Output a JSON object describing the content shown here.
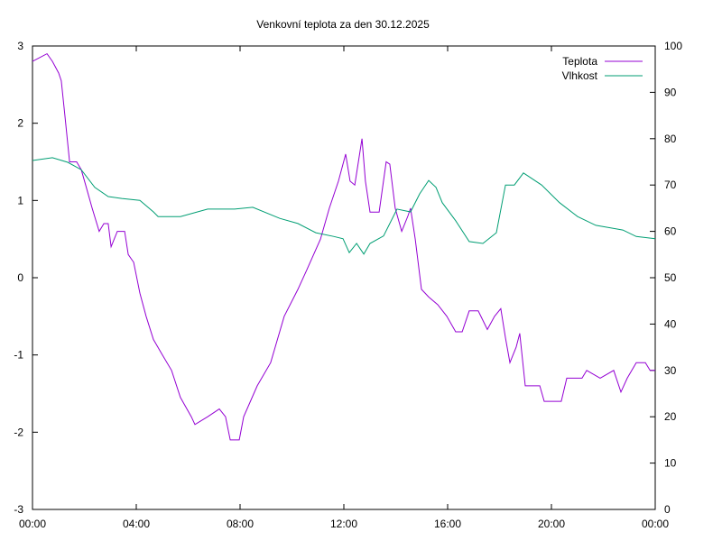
{
  "chart_data": {
    "type": "line",
    "title": "Venkovní teplota za den 30.12.2025",
    "xlabel": "",
    "ylabel": "",
    "y2label": "",
    "xlim": [
      0,
      24
    ],
    "ylim": [
      -3,
      3
    ],
    "y2lim": [
      0,
      100
    ],
    "x_ticks": [
      "00:00",
      "04:00",
      "08:00",
      "12:00",
      "16:00",
      "20:00",
      "00:00"
    ],
    "y_ticks": [
      "-3",
      "-2",
      "-1",
      "0",
      "1",
      "2",
      "3"
    ],
    "y2_ticks": [
      "0",
      "10",
      "20",
      "30",
      "40",
      "50",
      "60",
      "70",
      "80",
      "90",
      "100"
    ],
    "grid": false,
    "legend_position": "top-right",
    "series": [
      {
        "name": "Teplota",
        "axis": "y1",
        "color": "#9400d3",
        "x": [
          0,
          0.56,
          0.77,
          1.01,
          1.11,
          1.25,
          1.43,
          1.7,
          1.88,
          2.05,
          2.3,
          2.57,
          2.75,
          2.92,
          3.03,
          3.27,
          3.55,
          3.69,
          3.9,
          4.14,
          4.38,
          4.66,
          5.01,
          5.36,
          5.7,
          6.12,
          6.26,
          6.75,
          7.2,
          7.44,
          7.62,
          7.97,
          8.14,
          8.66,
          9.18,
          9.7,
          10.23,
          10.57,
          11.1,
          11.44,
          11.79,
          12.07,
          12.24,
          12.42,
          12.56,
          12.7,
          12.83,
          13.01,
          13.36,
          13.63,
          13.77,
          13.98,
          14.23,
          14.47,
          14.57,
          14.75,
          14.99,
          15.27,
          15.62,
          15.97,
          16.31,
          16.56,
          16.83,
          17.18,
          17.53,
          17.81,
          18.05,
          18.23,
          18.4,
          18.64,
          18.78,
          18.99,
          19.55,
          19.72,
          20.38,
          20.59,
          21.18,
          21.36,
          21.88,
          22.4,
          22.68,
          22.92,
          23.27,
          23.62,
          23.8,
          24
        ],
        "y": [
          2.8,
          2.9,
          2.8,
          2.65,
          2.55,
          2.1,
          1.5,
          1.5,
          1.4,
          1.2,
          0.9,
          0.6,
          0.7,
          0.7,
          0.4,
          0.6,
          0.6,
          0.3,
          0.2,
          -0.2,
          -0.5,
          -0.8,
          -1.0,
          -1.2,
          -1.55,
          -1.8,
          -1.9,
          -1.8,
          -1.7,
          -1.8,
          -2.1,
          -2.1,
          -1.8,
          -1.4,
          -1.1,
          -0.5,
          -0.15,
          0.1,
          0.5,
          0.9,
          1.25,
          1.6,
          1.25,
          1.2,
          1.5,
          1.8,
          1.25,
          0.85,
          0.85,
          1.5,
          1.47,
          0.9,
          0.6,
          0.8,
          0.9,
          0.5,
          -0.15,
          -0.25,
          -0.35,
          -0.5,
          -0.7,
          -0.7,
          -0.43,
          -0.43,
          -0.67,
          -0.5,
          -0.4,
          -0.78,
          -1.1,
          -0.9,
          -0.72,
          -1.4,
          -1.4,
          -1.6,
          -1.6,
          -1.3,
          -1.3,
          -1.2,
          -1.3,
          -1.2,
          -1.48,
          -1.3,
          -1.1,
          -1.1,
          -1.2,
          -1.2
        ]
      },
      {
        "name": "Vlhkost",
        "axis": "y2",
        "color": "#009e73",
        "x": [
          0,
          0.77,
          1.36,
          1.88,
          2.4,
          2.92,
          3.44,
          4.14,
          4.66,
          4.84,
          5.7,
          6.75,
          7.79,
          8.49,
          9.53,
          10.23,
          10.92,
          11.62,
          11.97,
          12.21,
          12.49,
          12.77,
          13.01,
          13.53,
          14.05,
          14.57,
          14.92,
          15.27,
          15.55,
          15.79,
          16.31,
          16.83,
          17.36,
          17.88,
          18.23,
          18.57,
          18.92,
          19.62,
          20.31,
          21.01,
          21.71,
          22.75,
          23.27,
          24
        ],
        "y": [
          75.3,
          75.9,
          74.9,
          73.3,
          69.5,
          67.5,
          67.1,
          66.7,
          64.2,
          63.2,
          63.2,
          64.8,
          64.8,
          65.2,
          62.8,
          61.7,
          59.7,
          58.9,
          58.4,
          55.4,
          57.4,
          55.1,
          57.4,
          59,
          64.8,
          64.2,
          68.1,
          71,
          69.5,
          66.2,
          62.3,
          57.8,
          57.4,
          59.7,
          70,
          70,
          72.6,
          70,
          66.2,
          63.2,
          61.3,
          60.3,
          58.9,
          58.4
        ]
      }
    ]
  }
}
